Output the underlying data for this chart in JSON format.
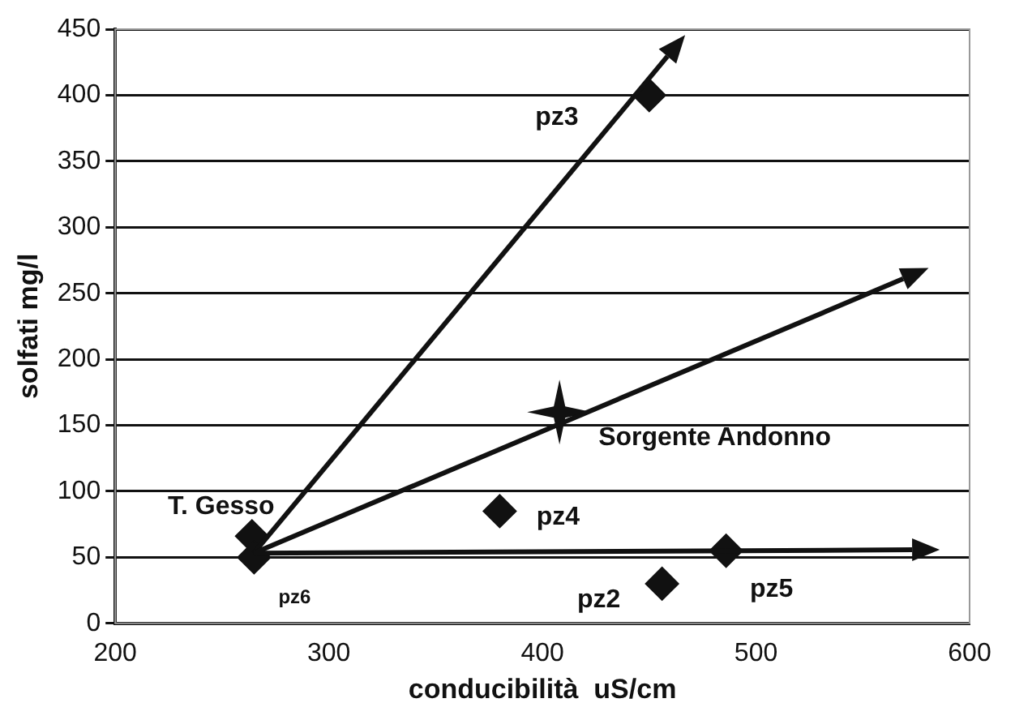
{
  "chart_data": {
    "type": "scatter",
    "xlabel": "conducibilità  uS/cm",
    "ylabel": "solfati mg/l",
    "series": [
      {
        "color": "#111111",
        "marker": "diamond",
        "x": [
          450,
          264,
          265,
          380,
          456,
          486
        ],
        "values": [
          400,
          66,
          50,
          85,
          30,
          55
        ]
      },
      {
        "color": "#111111",
        "marker": "star",
        "x": [
          408
        ],
        "values": [
          160
        ]
      }
    ],
    "annotations": [
      {
        "text": "pz3",
        "x": 450,
        "y": 400
      },
      {
        "text": "Sorgente Andonno",
        "x": 408,
        "y": 160
      },
      {
        "text": "T. Gesso",
        "x": 264,
        "y": 66
      },
      {
        "text": "pz6",
        "x": 265,
        "y": 50
      },
      {
        "text": "pz4",
        "x": 380,
        "y": 85
      },
      {
        "text": "pz2",
        "x": 456,
        "y": 30
      },
      {
        "text": "pz5",
        "x": 486,
        "y": 55
      }
    ],
    "xlim": [
      200,
      600
    ],
    "xticks": [
      200,
      300,
      400,
      500,
      600
    ],
    "ylim": [
      0,
      450
    ],
    "yticks": [
      0,
      50,
      100,
      150,
      200,
      250,
      300,
      350,
      400,
      450
    ],
    "grid": "y",
    "legend": false
  }
}
